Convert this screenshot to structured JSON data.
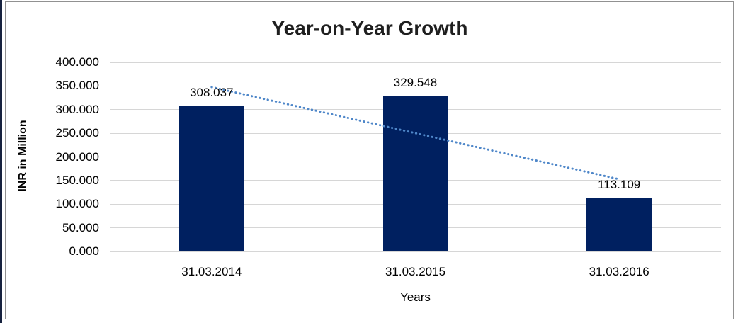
{
  "chart_data": {
    "type": "bar",
    "title": "Year-on-Year Growth",
    "xlabel": "Years",
    "ylabel": "INR in Million",
    "categories": [
      "31.03.2014",
      "31.03.2015",
      "31.03.2016"
    ],
    "values": [
      308.037,
      329.548,
      113.109
    ],
    "value_labels": [
      "308.037",
      "329.548",
      "113.109"
    ],
    "ylim": [
      0,
      400
    ],
    "ytick_step": 50,
    "ytick_labels": [
      "0.000",
      "50.000",
      "100.000",
      "150.000",
      "200.000",
      "250.000",
      "300.000",
      "350.000",
      "400.000"
    ],
    "grid": true,
    "legend": "none",
    "bar_color": "#002060",
    "trendline": {
      "type": "linear",
      "style": "dotted",
      "color": "#4f87c9"
    },
    "edge_strip_color": "#16213e"
  }
}
